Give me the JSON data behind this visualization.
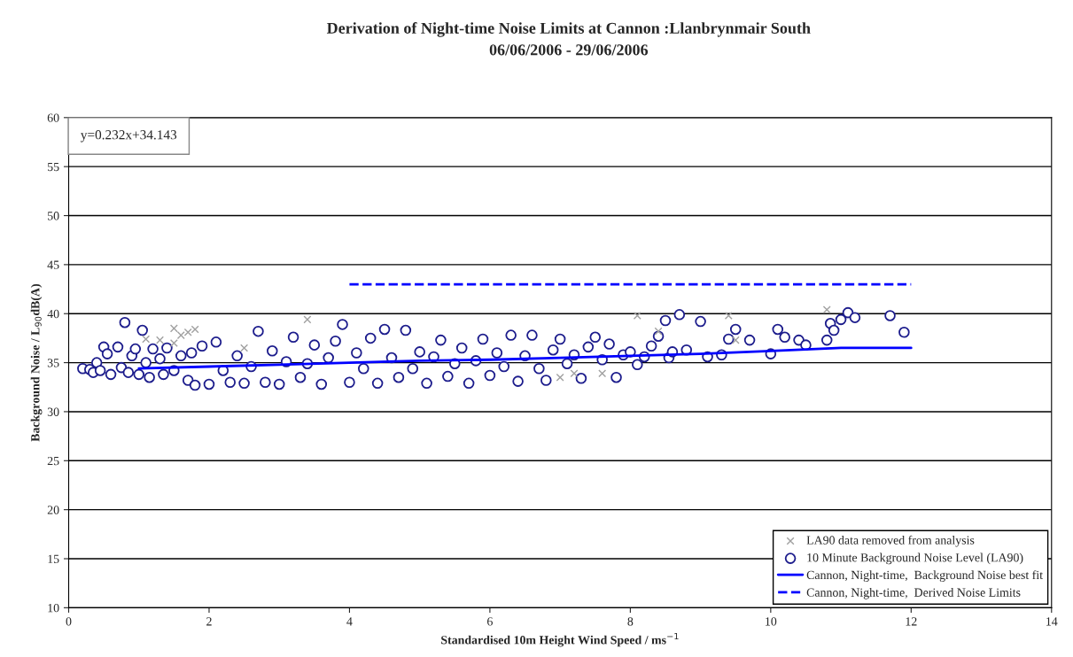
{
  "chart_data": {
    "type": "scatter",
    "title": "Derivation of Night-time Noise Limits at Cannon :Llanbrynmair South",
    "subtitle": "06/06/2006 - 29/06/2006",
    "xlabel": "Standardised 10m Height Wind Speed / ms$^{−1}$",
    "ylabel": "Background Noise / L$_{90}$dB(A)",
    "annotations": [
      "y=0.232x+34.143"
    ],
    "xlim": [
      0,
      14
    ],
    "xticks": [
      0,
      2,
      4,
      6,
      8,
      10,
      12,
      14
    ],
    "ylim": [
      10,
      60
    ],
    "yticks": [
      10,
      15,
      20,
      25,
      30,
      35,
      40,
      45,
      50,
      55,
      60
    ],
    "grid": "y",
    "legend": "bottom right",
    "series": [
      {
        "name": "LA90 data removed from analysis",
        "type": "scatter",
        "marker": "cross",
        "color": "#a0a0a0",
        "x": [
          1.1,
          1.3,
          1.5,
          1.6,
          1.7,
          1.8,
          1.5,
          2.5,
          3.4,
          7.0,
          7.2,
          7.6,
          8.1,
          8.4,
          9.4,
          9.5,
          10.8
        ],
        "values": [
          37.4,
          37.3,
          38.5,
          37.8,
          38.1,
          38.4,
          37.0,
          36.5,
          39.4,
          33.5,
          33.9,
          33.9,
          39.8,
          38.2,
          39.8,
          37.3,
          40.4
        ]
      },
      {
        "name": "10 Minute Background Noise Level (LA90)",
        "type": "scatter",
        "marker": "circle",
        "color": "#1c1c8c",
        "x": [
          0.2,
          0.3,
          0.35,
          0.4,
          0.45,
          0.5,
          0.55,
          0.6,
          0.7,
          0.75,
          0.8,
          0.85,
          0.9,
          0.95,
          1.0,
          1.05,
          1.1,
          1.15,
          1.2,
          1.3,
          1.35,
          1.4,
          1.5,
          1.6,
          1.7,
          1.75,
          1.8,
          1.9,
          2.0,
          2.1,
          2.2,
          2.3,
          2.4,
          2.5,
          2.6,
          2.7,
          2.8,
          2.9,
          3.0,
          3.1,
          3.2,
          3.3,
          3.4,
          3.5,
          3.6,
          3.7,
          3.8,
          3.9,
          4.0,
          4.1,
          4.2,
          4.3,
          4.4,
          4.5,
          4.6,
          4.7,
          4.8,
          4.9,
          5.0,
          5.1,
          5.2,
          5.3,
          5.4,
          5.5,
          5.6,
          5.7,
          5.8,
          5.9,
          6.0,
          6.1,
          6.2,
          6.3,
          6.4,
          6.5,
          6.6,
          6.7,
          6.8,
          6.9,
          7.0,
          7.1,
          7.2,
          7.3,
          7.4,
          7.5,
          7.6,
          7.7,
          7.8,
          7.9,
          8.0,
          8.1,
          8.2,
          8.3,
          8.4,
          8.5,
          8.55,
          8.6,
          8.7,
          8.8,
          9.0,
          9.1,
          9.3,
          9.4,
          9.5,
          9.7,
          10.0,
          10.1,
          10.2,
          10.4,
          10.5,
          10.8,
          10.85,
          10.9,
          11.0,
          11.1,
          11.2,
          11.7,
          11.9
        ],
        "values": [
          34.4,
          34.3,
          34.0,
          35.0,
          34.2,
          36.6,
          35.9,
          33.8,
          36.6,
          34.5,
          39.1,
          34.0,
          35.7,
          36.4,
          33.8,
          38.3,
          35.0,
          33.5,
          36.4,
          35.4,
          33.8,
          36.5,
          34.2,
          35.7,
          33.2,
          36.0,
          32.7,
          36.7,
          32.8,
          37.1,
          34.2,
          33.0,
          35.7,
          32.9,
          34.6,
          38.2,
          33.0,
          36.2,
          32.8,
          35.1,
          37.6,
          33.5,
          34.9,
          36.8,
          32.8,
          35.5,
          37.2,
          38.9,
          33.0,
          36.0,
          34.4,
          37.5,
          32.9,
          38.4,
          35.5,
          33.5,
          38.3,
          34.4,
          36.1,
          32.9,
          35.6,
          37.3,
          33.6,
          34.9,
          36.5,
          32.9,
          35.2,
          37.4,
          33.7,
          36.0,
          34.6,
          37.8,
          33.1,
          35.7,
          37.8,
          34.4,
          33.2,
          36.3,
          37.4,
          34.9,
          35.8,
          33.4,
          36.6,
          37.6,
          35.3,
          36.9,
          33.5,
          35.8,
          36.1,
          34.8,
          35.6,
          36.7,
          37.7,
          39.3,
          35.5,
          36.1,
          39.9,
          36.3,
          39.2,
          35.6,
          35.8,
          37.4,
          38.4,
          37.3,
          35.9,
          38.4,
          37.6,
          37.3,
          36.8,
          37.3,
          39.0,
          38.3,
          39.4,
          40.1,
          39.6,
          39.8,
          38.1
        ]
      },
      {
        "name": "Cannon, Night-time,  Background Noise best fit",
        "type": "line",
        "line_style": "solid",
        "color": "#0000ff",
        "x": [
          1,
          2,
          3,
          4,
          5,
          6,
          7,
          8,
          9,
          10,
          11,
          12
        ],
        "values": [
          34.4,
          34.6,
          34.8,
          35.0,
          35.2,
          35.3,
          35.5,
          35.7,
          35.9,
          36.2,
          36.5,
          36.5
        ]
      },
      {
        "name": "Cannon, Night-time,  Derived Noise Limits",
        "type": "line",
        "line_style": "dashed",
        "color": "#0000ff",
        "x": [
          4,
          12
        ],
        "values": [
          43,
          43
        ]
      }
    ]
  }
}
